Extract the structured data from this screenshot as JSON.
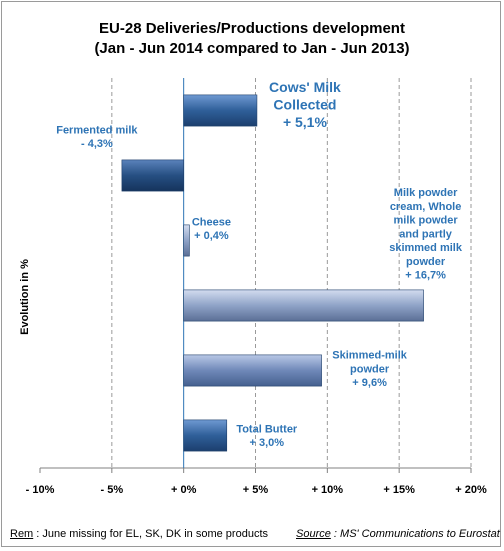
{
  "title_line1": "EU-28 Deliveries/Productions development",
  "title_line2": "(Jan - Jun 2014 compared to Jan - Jun 2013)",
  "footer": {
    "rem_label": "Rem",
    "rem_text": " : June missing  for EL, SK, DK in some products",
    "source_label": "Source",
    "source_text": " : MS' Communications to Eurostat"
  },
  "chart_data": {
    "type": "bar",
    "orientation": "horizontal",
    "ylabel": "Evolution in %",
    "xlim": [
      -10,
      20
    ],
    "ticks": [
      -10,
      -5,
      0,
      5,
      10,
      15,
      20
    ],
    "tick_labels": [
      "- 10%",
      "- 5%",
      "+ 0%",
      "+ 5%",
      "+ 10%",
      "+ 15%",
      "+ 20%"
    ],
    "grid": true,
    "categories": [
      "Cows' Milk Collected",
      "Fermented milk",
      "Cheese",
      "Milk powder cream, Whole milk powder and partly skimmed milk powder",
      "Skimmed-milk powder",
      "Total Butter"
    ],
    "values": [
      5.1,
      -4.3,
      0.4,
      16.7,
      9.6,
      3.0
    ],
    "bar_labels": [
      [
        "Cows' Milk",
        "Collected",
        "+ 5,1%"
      ],
      [
        "Fermented milk",
        "- 4,3%"
      ],
      [
        "Cheese",
        "+ 0,4%"
      ],
      [
        "Milk powder",
        "cream, Whole",
        "milk powder",
        "and partly",
        "skimmed milk",
        "powder",
        "+ 16,7%"
      ],
      [
        "Skimmed-milk",
        "powder",
        "+ 9,6%"
      ],
      [
        "Total Butter",
        "+ 3,0%"
      ]
    ],
    "label_color": "#2e74b5",
    "bar_colors": [
      "#2f5f99",
      "#264f82",
      "#8fa3c7",
      "#8fa3c7",
      "#6f88b8",
      "#2f5f99"
    ]
  }
}
